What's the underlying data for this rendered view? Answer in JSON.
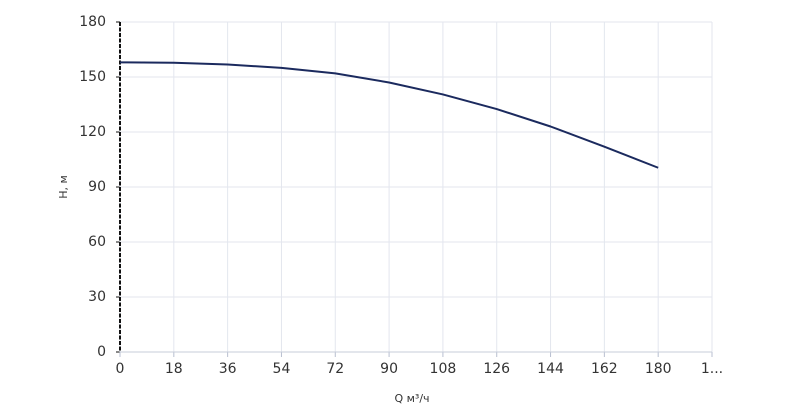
{
  "chart_data": {
    "type": "line",
    "x_label": "Q м³/ч",
    "y_label": "H, м",
    "x": [
      0,
      18,
      36,
      54,
      72,
      90,
      108,
      126,
      144,
      162,
      180
    ],
    "series": [
      {
        "name": "H",
        "color": "#1b2a5e",
        "values": [
          158,
          157.8,
          156.8,
          155,
          152,
          147,
          140.5,
          132.5,
          123,
          112,
          100.5
        ]
      }
    ],
    "xlim": [
      0,
      198
    ],
    "xticks": [
      0,
      18,
      36,
      54,
      72,
      90,
      108,
      126,
      144,
      162,
      180,
      {
        "value": 198,
        "label": "1..."
      }
    ],
    "ylim": [
      0,
      180
    ],
    "yticks": [
      0,
      30,
      60,
      90,
      120,
      150,
      180
    ],
    "grid": true
  }
}
